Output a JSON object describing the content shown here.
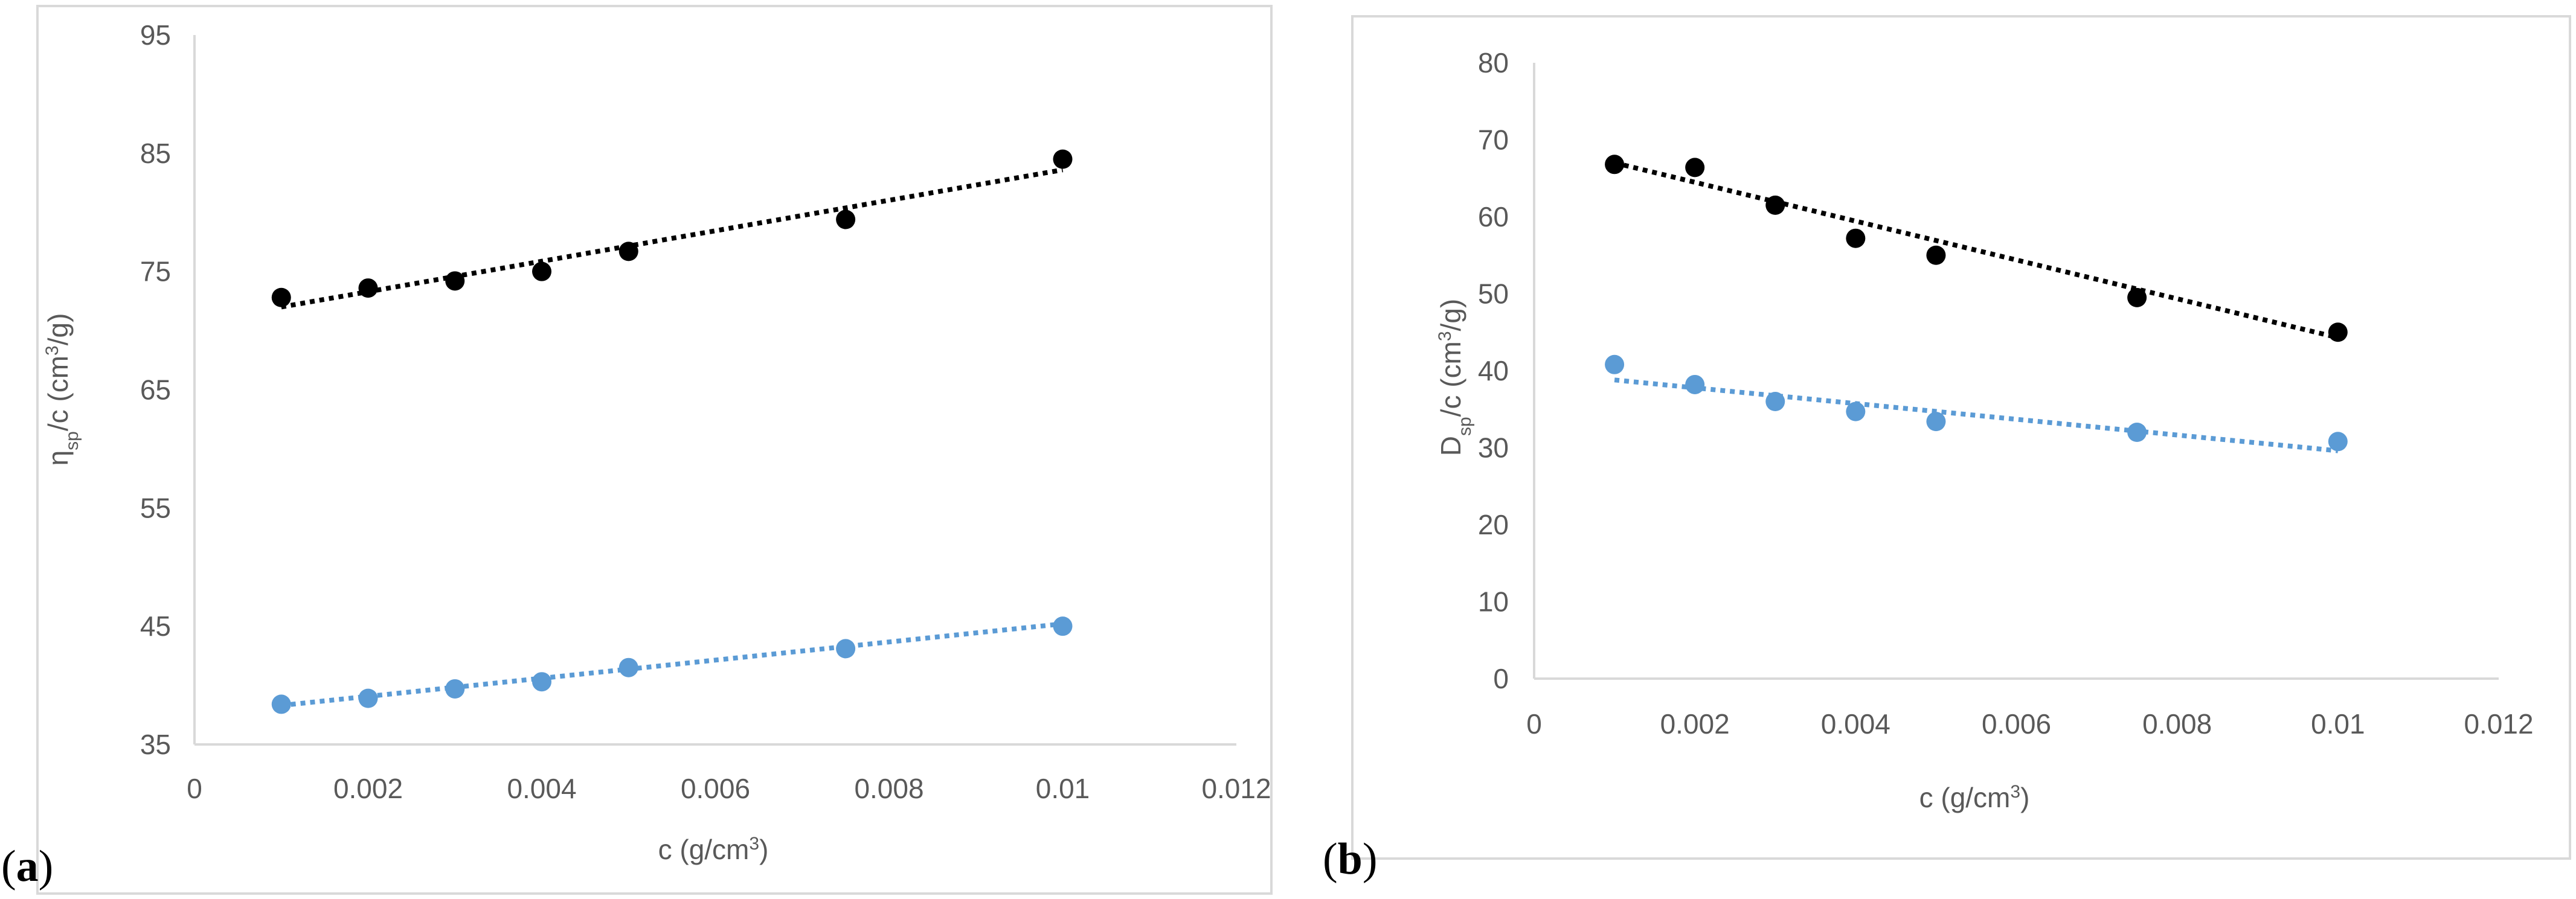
{
  "panels": [
    {
      "label_text": "a",
      "label_open": "(",
      "label_close": ")"
    },
    {
      "label_text": "b",
      "label_open": "(",
      "label_close": ")"
    }
  ],
  "colors": {
    "series_black": "#000000",
    "series_blue": "#5b9bd5",
    "axis": "#d9d9d9",
    "tick_text": "#595959"
  },
  "chart_data": [
    {
      "type": "scatter",
      "title": "",
      "xlabel": "c (g/cm3)",
      "ylabel": "ηsp/c (cm3/g)",
      "xlim": [
        0,
        0.012
      ],
      "ylim": [
        35,
        95
      ],
      "x_ticks": [
        "0",
        "0.002",
        "0.004",
        "0.006",
        "0.008",
        "0.01",
        "0.012"
      ],
      "y_ticks": [
        "35",
        "45",
        "55",
        "65",
        "75",
        "85",
        "95"
      ],
      "grid": false,
      "legend": "none",
      "trendlines": "linear, dotted",
      "series": [
        {
          "color": "#000000",
          "x": [
            0.001,
            0.002,
            0.003,
            0.004,
            0.005,
            0.0075,
            0.01
          ],
          "y": [
            72.8,
            73.6,
            74.2,
            75.0,
            76.7,
            79.4,
            84.5
          ],
          "trend": [
            72.0,
            83.6
          ]
        },
        {
          "color": "#5b9bd5",
          "x": [
            0.001,
            0.002,
            0.003,
            0.004,
            0.005,
            0.0075,
            0.01
          ],
          "y": [
            38.4,
            38.9,
            39.7,
            40.3,
            41.5,
            43.1,
            45.0
          ],
          "trend": [
            38.3,
            45.2
          ]
        }
      ]
    },
    {
      "type": "scatter",
      "title": "",
      "xlabel": "c (g/cm3)",
      "ylabel": "Dsp/c (cm3/g)",
      "xlim": [
        0,
        0.012
      ],
      "ylim": [
        0,
        80
      ],
      "x_ticks": [
        "0",
        "0.002",
        "0.004",
        "0.006",
        "0.008",
        "0.01",
        "0.012"
      ],
      "y_ticks": [
        "0",
        "10",
        "20",
        "30",
        "40",
        "50",
        "60",
        "70",
        "80"
      ],
      "grid": false,
      "legend": "none",
      "trendlines": "linear, dotted",
      "series": [
        {
          "color": "#000000",
          "x": [
            0.001,
            0.002,
            0.003,
            0.004,
            0.005,
            0.0075,
            0.01
          ],
          "y": [
            66.8,
            66.4,
            61.5,
            57.2,
            55.0,
            49.5,
            45.0
          ],
          "trend": [
            67.0,
            44.3
          ]
        },
        {
          "color": "#5b9bd5",
          "x": [
            0.001,
            0.002,
            0.003,
            0.004,
            0.005,
            0.0075,
            0.01
          ],
          "y": [
            40.8,
            38.2,
            36.0,
            34.7,
            33.4,
            32.0,
            30.8
          ],
          "trend": [
            38.8,
            29.6
          ]
        }
      ]
    }
  ]
}
